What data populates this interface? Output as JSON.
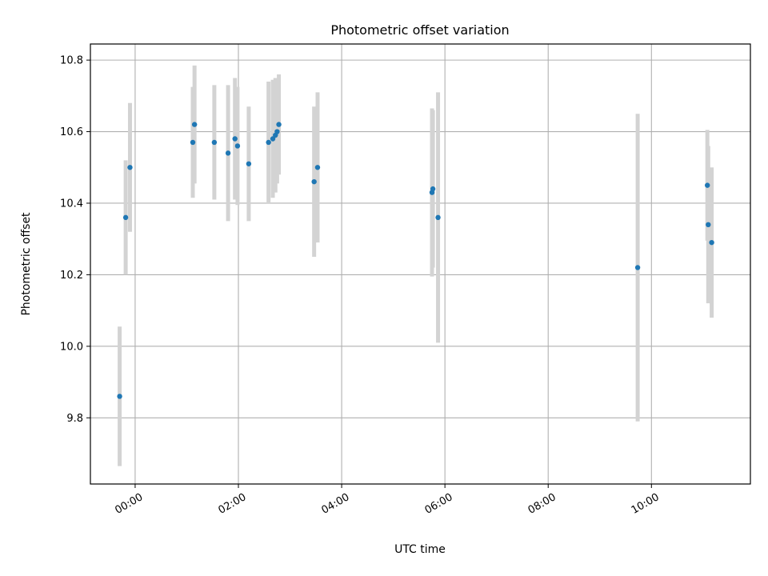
{
  "chart_data": {
    "type": "scatter",
    "title": "Photometric offset variation",
    "xlabel": "UTC time",
    "ylabel": "Photometric offset",
    "xlim": [
      "-00:52",
      "11:55"
    ],
    "ylim": [
      9.615,
      10.845
    ],
    "x_ticks": [
      "00:00",
      "02:00",
      "04:00",
      "06:00",
      "08:00",
      "10:00"
    ],
    "y_ticks": [
      "9.8",
      "10.0",
      "10.2",
      "10.4",
      "10.6",
      "10.8"
    ],
    "grid": true,
    "colors": {
      "points": "#1f77b4",
      "errorbars": "#d3d3d3",
      "grid": "#b0b0b0"
    },
    "points": [
      {
        "x": "-00:18",
        "y": 9.86,
        "yerr": 0.195
      },
      {
        "x": "-00:11",
        "y": 10.36,
        "yerr": 0.16
      },
      {
        "x": "-00:06",
        "y": 10.5,
        "yerr": 0.18
      },
      {
        "x": "01:07",
        "y": 10.57,
        "yerr": 0.155
      },
      {
        "x": "01:09",
        "y": 10.62,
        "yerr": 0.165
      },
      {
        "x": "01:32",
        "y": 10.57,
        "yerr": 0.16
      },
      {
        "x": "01:48",
        "y": 10.54,
        "yerr": 0.19
      },
      {
        "x": "01:56",
        "y": 10.58,
        "yerr": 0.17
      },
      {
        "x": "01:59",
        "y": 10.56,
        "yerr": 0.165
      },
      {
        "x": "02:12",
        "y": 10.51,
        "yerr": 0.16
      },
      {
        "x": "02:35",
        "y": 10.57,
        "yerr": 0.17
      },
      {
        "x": "02:40",
        "y": 10.58,
        "yerr": 0.165
      },
      {
        "x": "02:43",
        "y": 10.59,
        "yerr": 0.16
      },
      {
        "x": "02:45",
        "y": 10.6,
        "yerr": 0.145
      },
      {
        "x": "02:47",
        "y": 10.62,
        "yerr": 0.14
      },
      {
        "x": "03:28",
        "y": 10.46,
        "yerr": 0.21
      },
      {
        "x": "03:32",
        "y": 10.5,
        "yerr": 0.21
      },
      {
        "x": "05:45",
        "y": 10.43,
        "yerr": 0.235
      },
      {
        "x": "05:46",
        "y": 10.44,
        "yerr": 0.22
      },
      {
        "x": "05:52",
        "y": 10.36,
        "yerr": 0.35
      },
      {
        "x": "09:44",
        "y": 10.22,
        "yerr": 0.43
      },
      {
        "x": "11:05",
        "y": 10.45,
        "yerr": 0.155
      },
      {
        "x": "11:06",
        "y": 10.34,
        "yerr": 0.22
      },
      {
        "x": "11:10",
        "y": 10.29,
        "yerr": 0.21
      }
    ]
  }
}
